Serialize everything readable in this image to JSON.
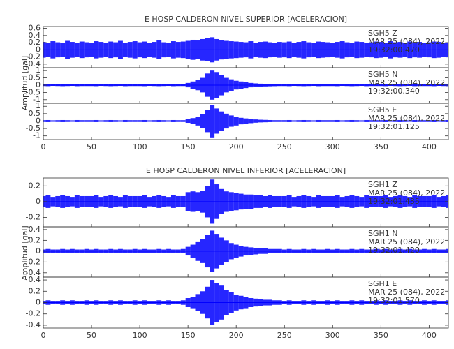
{
  "chart_data": [
    {
      "type": "seismogram",
      "title": "E HOSP CALDERON NIVEL SUPERIOR [ACELERACION]",
      "y_label": "Amplitud [gal]",
      "color": "#0000ff",
      "xlim": [
        0,
        420
      ],
      "xticks": [
        0,
        50,
        100,
        150,
        200,
        250,
        300,
        350,
        400
      ],
      "x": [
        0,
        5,
        10,
        15,
        20,
        25,
        30,
        35,
        40,
        45,
        50,
        55,
        60,
        65,
        70,
        75,
        80,
        85,
        90,
        95,
        100,
        105,
        110,
        115,
        120,
        125,
        130,
        135,
        140,
        145,
        150,
        155,
        160,
        165,
        170,
        175,
        180,
        185,
        190,
        195,
        200,
        205,
        210,
        215,
        220,
        225,
        230,
        235,
        240,
        245,
        250,
        255,
        260,
        265,
        270,
        275,
        280,
        285,
        290,
        295,
        300,
        305,
        310,
        315,
        320,
        325,
        330,
        335,
        340,
        345,
        350,
        355,
        360,
        365,
        370,
        375,
        380,
        385,
        390,
        395,
        400,
        405,
        410,
        415,
        420
      ],
      "series": [
        {
          "name": "SGH5   Z",
          "date": "MAR 25 (084), 2022",
          "time": "19:32:00.470",
          "ylim": [
            -0.5,
            0.65
          ],
          "yticks": [
            -0.4,
            -0.2,
            0.0,
            0.2,
            0.4,
            0.6
          ],
          "values": [
            0.22,
            0.2,
            0.24,
            0.21,
            0.19,
            0.25,
            0.22,
            0.2,
            0.23,
            0.21,
            0.2,
            0.24,
            0.22,
            0.19,
            0.23,
            0.21,
            0.25,
            0.2,
            0.22,
            0.24,
            0.21,
            0.23,
            0.2,
            0.22,
            0.26,
            0.21,
            0.2,
            0.24,
            0.22,
            0.23,
            0.25,
            0.28,
            0.26,
            0.3,
            0.32,
            0.35,
            0.3,
            0.27,
            0.25,
            0.24,
            0.23,
            0.22,
            0.21,
            0.24,
            0.2,
            0.22,
            0.23,
            0.21,
            0.2,
            0.22,
            0.21,
            0.23,
            0.2,
            0.22,
            0.24,
            0.21,
            0.2,
            0.23,
            0.22,
            0.21,
            0.2,
            0.22,
            0.24,
            0.21,
            0.2,
            0.23,
            0.22,
            0.2,
            0.21,
            0.23,
            0.22,
            0.2,
            0.24,
            0.21,
            0.22,
            0.2,
            0.23,
            0.21,
            0.22,
            0.2,
            0.21,
            0.23,
            0.22,
            0.2,
            0.21
          ]
        },
        {
          "name": "SGH5   N",
          "date": "MAR 25 (084), 2022",
          "time": "19:32:00.340",
          "ylim": [
            -1.25,
            1.2
          ],
          "yticks": [
            -1.0,
            -0.5,
            0.0,
            0.5,
            1.0
          ],
          "values": [
            0.06,
            0.07,
            0.05,
            0.06,
            0.07,
            0.06,
            0.05,
            0.07,
            0.06,
            0.06,
            0.06,
            0.07,
            0.05,
            0.06,
            0.07,
            0.06,
            0.05,
            0.07,
            0.06,
            0.06,
            0.06,
            0.07,
            0.05,
            0.06,
            0.07,
            0.06,
            0.05,
            0.07,
            0.06,
            0.06,
            0.15,
            0.25,
            0.35,
            0.5,
            0.8,
            1.0,
            0.9,
            0.7,
            0.5,
            0.4,
            0.3,
            0.25,
            0.2,
            0.15,
            0.12,
            0.1,
            0.09,
            0.08,
            0.07,
            0.06,
            0.06,
            0.07,
            0.05,
            0.06,
            0.07,
            0.06,
            0.05,
            0.07,
            0.06,
            0.06,
            0.06,
            0.07,
            0.05,
            0.06,
            0.07,
            0.06,
            0.05,
            0.07,
            0.06,
            0.06,
            0.06,
            0.07,
            0.05,
            0.06,
            0.07,
            0.06,
            0.05,
            0.07,
            0.06,
            0.06,
            0.06,
            0.07,
            0.05,
            0.06,
            0.07
          ]
        },
        {
          "name": "SGH5   E",
          "date": "MAR 25 (084), 2022",
          "time": "19:32:01.125",
          "ylim": [
            -1.25,
            1.2
          ],
          "yticks": [
            -1.0,
            -0.5,
            0.0,
            0.5,
            1.0
          ],
          "values": [
            0.06,
            0.07,
            0.05,
            0.06,
            0.07,
            0.06,
            0.05,
            0.07,
            0.06,
            0.06,
            0.06,
            0.07,
            0.05,
            0.06,
            0.07,
            0.06,
            0.05,
            0.07,
            0.06,
            0.06,
            0.06,
            0.07,
            0.05,
            0.06,
            0.07,
            0.06,
            0.05,
            0.07,
            0.06,
            0.06,
            0.12,
            0.2,
            0.3,
            0.45,
            0.75,
            1.1,
            0.85,
            0.65,
            0.5,
            0.38,
            0.3,
            0.22,
            0.18,
            0.14,
            0.11,
            0.09,
            0.08,
            0.07,
            0.06,
            0.06,
            0.06,
            0.07,
            0.05,
            0.06,
            0.07,
            0.06,
            0.05,
            0.07,
            0.06,
            0.06,
            0.06,
            0.07,
            0.05,
            0.06,
            0.07,
            0.06,
            0.05,
            0.07,
            0.06,
            0.06,
            0.06,
            0.07,
            0.05,
            0.06,
            0.07,
            0.06,
            0.05,
            0.07,
            0.06,
            0.06,
            0.06,
            0.07,
            0.05,
            0.06,
            0.07
          ]
        }
      ]
    },
    {
      "type": "seismogram",
      "title": "E HOSP CALDERON NIVEL INFERIOR [ACELERACION]",
      "y_label": "Amplitud [gal]",
      "color": "#0000ff",
      "xlim": [
        0,
        420
      ],
      "xticks": [
        0,
        50,
        100,
        150,
        200,
        250,
        300,
        350,
        400
      ],
      "x": [
        0,
        5,
        10,
        15,
        20,
        25,
        30,
        35,
        40,
        45,
        50,
        55,
        60,
        65,
        70,
        75,
        80,
        85,
        90,
        95,
        100,
        105,
        110,
        115,
        120,
        125,
        130,
        135,
        140,
        145,
        150,
        155,
        160,
        165,
        170,
        175,
        180,
        185,
        190,
        195,
        200,
        205,
        210,
        215,
        220,
        225,
        230,
        235,
        240,
        245,
        250,
        255,
        260,
        265,
        270,
        275,
        280,
        285,
        290,
        295,
        300,
        305,
        310,
        315,
        320,
        325,
        330,
        335,
        340,
        345,
        350,
        355,
        360,
        365,
        370,
        375,
        380,
        385,
        390,
        395,
        400,
        405,
        410,
        415,
        420
      ],
      "series": [
        {
          "name": "SGH1   Z",
          "date": "MAR 25 (084), 2022",
          "time": "19:32:01.435",
          "ylim": [
            -0.32,
            0.3
          ],
          "yticks": [
            -0.2,
            0.0,
            0.2
          ],
          "values": [
            0.07,
            0.08,
            0.06,
            0.07,
            0.08,
            0.07,
            0.06,
            0.08,
            0.07,
            0.07,
            0.07,
            0.08,
            0.06,
            0.07,
            0.08,
            0.07,
            0.06,
            0.08,
            0.07,
            0.07,
            0.07,
            0.08,
            0.06,
            0.07,
            0.08,
            0.07,
            0.06,
            0.08,
            0.07,
            0.07,
            0.12,
            0.13,
            0.12,
            0.14,
            0.2,
            0.28,
            0.22,
            0.16,
            0.13,
            0.12,
            0.11,
            0.1,
            0.09,
            0.09,
            0.08,
            0.08,
            0.07,
            0.08,
            0.07,
            0.07,
            0.07,
            0.08,
            0.06,
            0.07,
            0.08,
            0.07,
            0.06,
            0.08,
            0.07,
            0.07,
            0.07,
            0.08,
            0.06,
            0.07,
            0.08,
            0.07,
            0.06,
            0.08,
            0.07,
            0.07,
            0.07,
            0.08,
            0.06,
            0.07,
            0.08,
            0.07,
            0.06,
            0.08,
            0.07,
            0.07,
            0.07,
            0.08,
            0.06,
            0.07,
            0.08
          ]
        },
        {
          "name": "SGH1   N",
          "date": "MAR 25 (084), 2022",
          "time": "19:32:01.420",
          "ylim": [
            -0.48,
            0.45
          ],
          "yticks": [
            -0.4,
            -0.2,
            0.0,
            0.2,
            0.4
          ],
          "values": [
            0.03,
            0.04,
            0.03,
            0.03,
            0.04,
            0.03,
            0.04,
            0.03,
            0.03,
            0.04,
            0.03,
            0.04,
            0.03,
            0.03,
            0.04,
            0.03,
            0.04,
            0.03,
            0.03,
            0.04,
            0.03,
            0.04,
            0.03,
            0.03,
            0.04,
            0.03,
            0.04,
            0.03,
            0.03,
            0.04,
            0.08,
            0.12,
            0.18,
            0.22,
            0.3,
            0.38,
            0.32,
            0.25,
            0.2,
            0.15,
            0.12,
            0.1,
            0.08,
            0.07,
            0.06,
            0.05,
            0.05,
            0.04,
            0.04,
            0.04,
            0.03,
            0.04,
            0.03,
            0.03,
            0.04,
            0.03,
            0.04,
            0.03,
            0.03,
            0.04,
            0.03,
            0.04,
            0.03,
            0.03,
            0.04,
            0.03,
            0.04,
            0.03,
            0.03,
            0.04,
            0.03,
            0.04,
            0.03,
            0.03,
            0.04,
            0.03,
            0.04,
            0.03,
            0.03,
            0.04,
            0.03,
            0.04,
            0.03,
            0.03,
            0.04
          ]
        },
        {
          "name": "SGH1   E",
          "date": "MAR 25 (084), 2022",
          "time": "19:32:01.570",
          "ylim": [
            -0.45,
            0.45
          ],
          "yticks": [
            -0.4,
            -0.2,
            0.0,
            0.2,
            0.4
          ],
          "values": [
            0.03,
            0.04,
            0.03,
            0.03,
            0.04,
            0.03,
            0.04,
            0.03,
            0.03,
            0.04,
            0.03,
            0.04,
            0.03,
            0.03,
            0.04,
            0.03,
            0.04,
            0.03,
            0.03,
            0.04,
            0.03,
            0.04,
            0.03,
            0.03,
            0.04,
            0.03,
            0.04,
            0.03,
            0.03,
            0.04,
            0.08,
            0.1,
            0.15,
            0.2,
            0.28,
            0.4,
            0.35,
            0.3,
            0.22,
            0.18,
            0.14,
            0.12,
            0.1,
            0.08,
            0.07,
            0.06,
            0.05,
            0.05,
            0.04,
            0.04,
            0.03,
            0.04,
            0.03,
            0.03,
            0.04,
            0.03,
            0.04,
            0.03,
            0.03,
            0.04,
            0.03,
            0.04,
            0.03,
            0.03,
            0.04,
            0.03,
            0.04,
            0.03,
            0.03,
            0.04,
            0.03,
            0.04,
            0.03,
            0.03,
            0.04,
            0.03,
            0.04,
            0.03,
            0.03,
            0.04,
            0.03,
            0.04,
            0.03,
            0.03,
            0.04
          ]
        }
      ]
    }
  ]
}
